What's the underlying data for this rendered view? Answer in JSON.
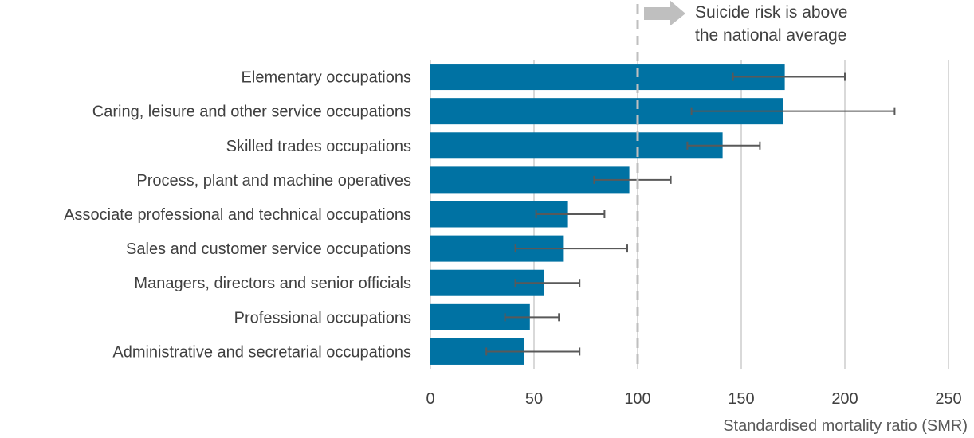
{
  "chart_data": {
    "type": "bar",
    "orientation": "horizontal",
    "title": "",
    "xlabel": "Standardised mortality ratio (SMR)",
    "ylabel": "",
    "xlim": [
      0,
      250
    ],
    "xticks": [
      0,
      50,
      100,
      150,
      200,
      250
    ],
    "grid": true,
    "categories": [
      "Elementary occupations",
      "Caring, leisure and other service occupations",
      "Skilled trades occupations",
      "Process, plant and machine operatives",
      "Associate professional and technical occupations",
      "Sales and customer service occupations",
      "Managers, directors and senior officials",
      "Professional occupations",
      "Administrative and secretarial occupations"
    ],
    "values": [
      171,
      170,
      141,
      96,
      66,
      64,
      55,
      48,
      45
    ],
    "error_low": [
      146,
      126,
      124,
      79,
      51,
      41,
      41,
      36,
      27
    ],
    "error_high": [
      200,
      224,
      159,
      116,
      84,
      95,
      72,
      62,
      72
    ],
    "reference_line": 100,
    "annotation": [
      "Suicide risk is above",
      "the national average"
    ],
    "colors": {
      "bar": "#0072A3",
      "error": "#595959",
      "reference": "#BFBFBF",
      "grid": "#D9D9D9",
      "arrow": "#BFBFBF"
    }
  }
}
